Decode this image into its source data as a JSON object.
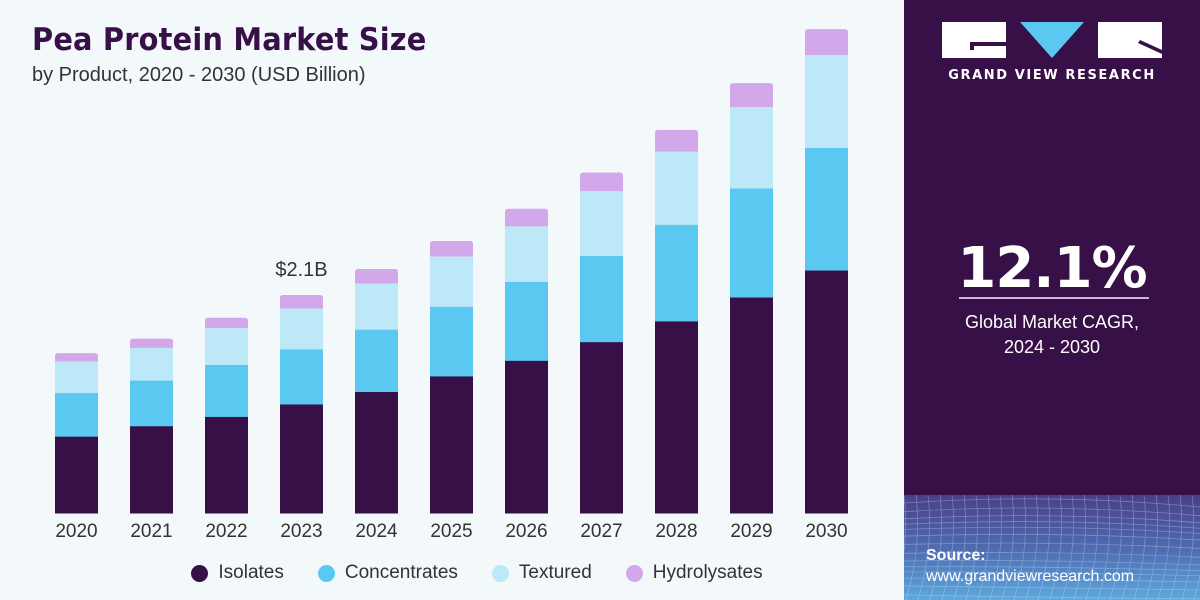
{
  "header": {
    "title": "Pea Protein Market Size",
    "subtitle": "by Product, 2020 - 2030 (USD Billion)"
  },
  "sidebar": {
    "brand": "GRAND VIEW RESEARCH",
    "cagr_value": "12.1%",
    "cagr_label_line1": "Global Market CAGR,",
    "cagr_label_line2": "2024 - 2030",
    "source_label": "Source:",
    "source_url": "www.grandviewresearch.com"
  },
  "colors": {
    "Isolates": "#371047",
    "Concentrates": "#5bc8f2",
    "Textured": "#bde8f7",
    "Hydrolysates": "#d2a8ea",
    "brand_dark": "#371047",
    "logo_triangle": "#5bc8f2"
  },
  "chart_data": {
    "type": "bar",
    "stacked": true,
    "title": "Pea Protein Market Size",
    "subtitle": "by Product, 2020 - 2030 (USD Billion)",
    "xlabel": "",
    "ylabel": "USD Billion",
    "ylim": [
      0,
      4.7
    ],
    "grid": false,
    "legend_position": "bottom",
    "categories": [
      "2020",
      "2021",
      "2022",
      "2023",
      "2024",
      "2025",
      "2026",
      "2027",
      "2028",
      "2029",
      "2030"
    ],
    "series": [
      {
        "name": "Isolates",
        "values": [
          0.74,
          0.84,
          0.93,
          1.05,
          1.17,
          1.32,
          1.47,
          1.65,
          1.85,
          2.08,
          2.34
        ]
      },
      {
        "name": "Concentrates",
        "values": [
          0.42,
          0.44,
          0.5,
          0.53,
          0.6,
          0.67,
          0.76,
          0.83,
          0.93,
          1.05,
          1.18
        ]
      },
      {
        "name": "Textured",
        "values": [
          0.3,
          0.31,
          0.35,
          0.39,
          0.44,
          0.48,
          0.53,
          0.62,
          0.7,
          0.78,
          0.89
        ]
      },
      {
        "name": "Hydrolysates",
        "values": [
          0.08,
          0.09,
          0.1,
          0.13,
          0.14,
          0.15,
          0.17,
          0.18,
          0.21,
          0.23,
          0.25
        ]
      }
    ],
    "annotations": [
      {
        "category": "2023",
        "text": "$2.1B"
      }
    ]
  }
}
